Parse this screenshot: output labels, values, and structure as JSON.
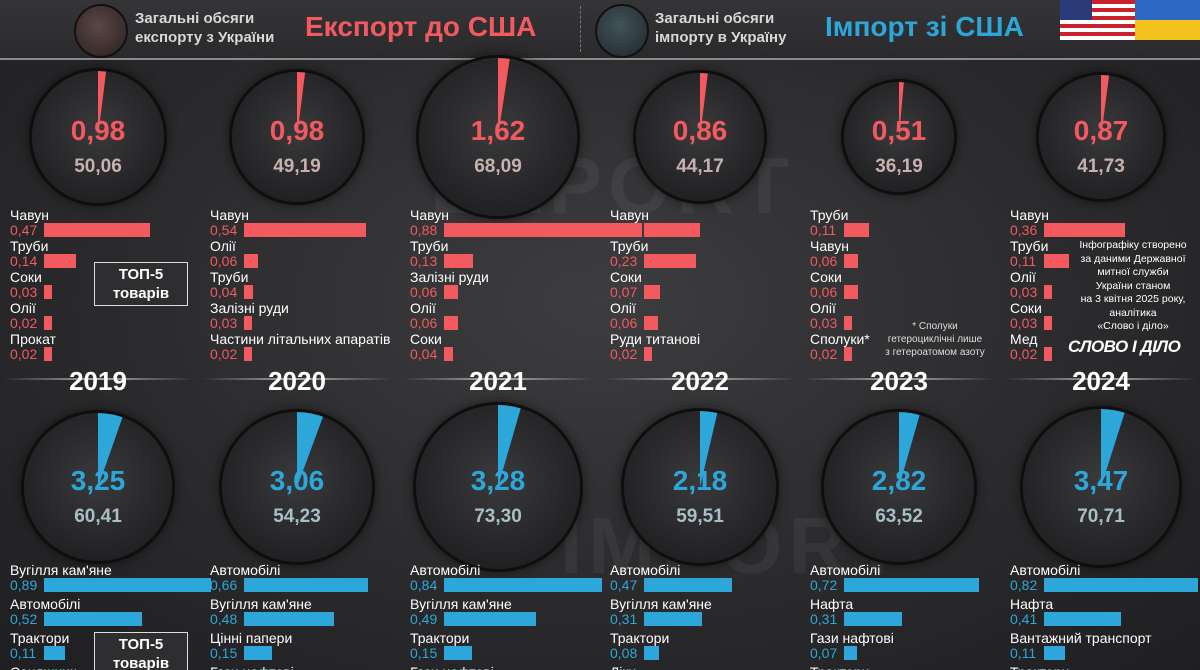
{
  "colors": {
    "export": "#f25a5f",
    "import": "#2da7da",
    "export_dim": "#c6b1ae",
    "import_dim": "#a9bfc6"
  },
  "header": {
    "export_sub_1": "Загальні обсяги",
    "export_sub_2": "експорту з України",
    "export_title": "Експорт до США",
    "import_sub_1": "Загальні обсяги",
    "import_sub_2": "імпорту в Україну",
    "import_title": "Імпорт зі США"
  },
  "top5_label_1": "ТОП-5",
  "top5_label_2": "товарів",
  "note": {
    "line1": "* Сполуки",
    "line2": "гетероциклічні лише",
    "line3": "з гетероатомом азоту"
  },
  "credit": {
    "line1": "Інфографіку створено",
    "line2": "за даними Державної",
    "line3": "митної служби",
    "line4": "України станом",
    "line5": "на 3 квітня 2025 року,",
    "line6": "аналітика",
    "line7": "«Слово і діло»"
  },
  "logo": "СЛОВО І ДІЛО",
  "chart_data": [
    {
      "type": "pie",
      "name": "export",
      "years": [
        "2019",
        "2020",
        "2021",
        "2022",
        "2023",
        "2024"
      ],
      "usa_values": [
        "0,98",
        "0,98",
        "1,62",
        "0,86",
        "0,51",
        "0,87"
      ],
      "total_values": [
        "50,06",
        "49,19",
        "68,09",
        "44,17",
        "36,19",
        "41,73"
      ],
      "usa_numeric": [
        0.98,
        0.98,
        1.62,
        0.86,
        0.51,
        0.87
      ],
      "total_numeric": [
        50.06,
        49.19,
        68.09,
        44.17,
        36.19,
        41.73
      ]
    },
    {
      "type": "pie",
      "name": "import",
      "years": [
        "2019",
        "2020",
        "2021",
        "2022",
        "2023",
        "2024"
      ],
      "usa_values": [
        "3,25",
        "3,06",
        "3,28",
        "2,18",
        "2,82",
        "3,47"
      ],
      "total_values": [
        "60,41",
        "54,23",
        "73,30",
        "59,51",
        "63,52",
        "70,71"
      ],
      "usa_numeric": [
        3.25,
        3.06,
        3.28,
        2.18,
        2.82,
        3.47
      ],
      "total_numeric": [
        60.41,
        54.23,
        73.3,
        59.51,
        63.52,
        70.71
      ]
    },
    {
      "type": "bar",
      "name": "export_top5",
      "columns": [
        {
          "year": "2019",
          "items": [
            {
              "label": "Чавун",
              "value": "0,47"
            },
            {
              "label": "Труби",
              "value": "0,14"
            },
            {
              "label": "Соки",
              "value": "0,03"
            },
            {
              "label": "Олії",
              "value": "0,02"
            },
            {
              "label": "Прокат",
              "value": "0,02"
            }
          ]
        },
        {
          "year": "2020",
          "items": [
            {
              "label": "Чавун",
              "value": "0,54"
            },
            {
              "label": "Олії",
              "value": "0,06"
            },
            {
              "label": "Труби",
              "value": "0,04"
            },
            {
              "label": "Залізні руди",
              "value": "0,03"
            },
            {
              "label": "Частини літальних апаратів",
              "value": "0,02"
            }
          ]
        },
        {
          "year": "2021",
          "items": [
            {
              "label": "Чавун",
              "value": "0,88"
            },
            {
              "label": "Труби",
              "value": "0,13"
            },
            {
              "label": "Залізні руди",
              "value": "0,06"
            },
            {
              "label": "Олії",
              "value": "0,06"
            },
            {
              "label": "Соки",
              "value": "0,04"
            }
          ]
        },
        {
          "year": "2022",
          "items": [
            {
              "label": "Чавун",
              "value": "0,25"
            },
            {
              "label": "Труби",
              "value": "0,23"
            },
            {
              "label": "Соки",
              "value": "0,07"
            },
            {
              "label": "Олії",
              "value": "0,06"
            },
            {
              "label": "Руди титанові",
              "value": "0,02"
            }
          ]
        },
        {
          "year": "2023",
          "items": [
            {
              "label": "Труби",
              "value": "0,11"
            },
            {
              "label": "Чавун",
              "value": "0,06"
            },
            {
              "label": "Соки",
              "value": "0,06"
            },
            {
              "label": "Олії",
              "value": "0,03"
            },
            {
              "label": "Сполуки*",
              "value": "0,02"
            }
          ]
        },
        {
          "year": "2024",
          "items": [
            {
              "label": "Чавун",
              "value": "0,36"
            },
            {
              "label": "Труби",
              "value": "0,11"
            },
            {
              "label": "Олії",
              "value": "0,03"
            },
            {
              "label": "Соки",
              "value": "0,03"
            },
            {
              "label": "Мед",
              "value": "0,02"
            }
          ]
        }
      ]
    },
    {
      "type": "bar",
      "name": "import_top5",
      "columns": [
        {
          "year": "2019",
          "items": [
            {
              "label": "Вугілля кам'яне",
              "value": "0,89"
            },
            {
              "label": "Автомобілі",
              "value": "0,52"
            },
            {
              "label": "Трактори",
              "value": "0,11"
            },
            {
              "label": "Соняшник",
              "value": ""
            }
          ]
        },
        {
          "year": "2020",
          "items": [
            {
              "label": "Автомобілі",
              "value": "0,66"
            },
            {
              "label": "Вугілля кам'яне",
              "value": "0,48"
            },
            {
              "label": "Цінні папери",
              "value": "0,15"
            },
            {
              "label": "Гази нафтові",
              "value": ""
            }
          ]
        },
        {
          "year": "2021",
          "items": [
            {
              "label": "Автомобілі",
              "value": "0,84"
            },
            {
              "label": "Вугілля кам'яне",
              "value": "0,49"
            },
            {
              "label": "Трактори",
              "value": "0,15"
            },
            {
              "label": "Гази нафтові",
              "value": ""
            }
          ]
        },
        {
          "year": "2022",
          "items": [
            {
              "label": "Автомобілі",
              "value": "0,47"
            },
            {
              "label": "Вугілля кам'яне",
              "value": "0,31"
            },
            {
              "label": "Трактори",
              "value": "0,08"
            },
            {
              "label": "Ліки",
              "value": ""
            }
          ]
        },
        {
          "year": "2023",
          "items": [
            {
              "label": "Автомобілі",
              "value": "0,72"
            },
            {
              "label": "Нафта",
              "value": "0,31"
            },
            {
              "label": "Гази нафтові",
              "value": "0,07"
            },
            {
              "label": "Трактори",
              "value": ""
            }
          ]
        },
        {
          "year": "2024",
          "items": [
            {
              "label": "Автомобілі",
              "value": "0,82"
            },
            {
              "label": "Нафта",
              "value": "0,41"
            },
            {
              "label": "Вантажний транспорт",
              "value": "0,11"
            },
            {
              "label": "Трактори",
              "value": ""
            }
          ]
        }
      ]
    }
  ]
}
